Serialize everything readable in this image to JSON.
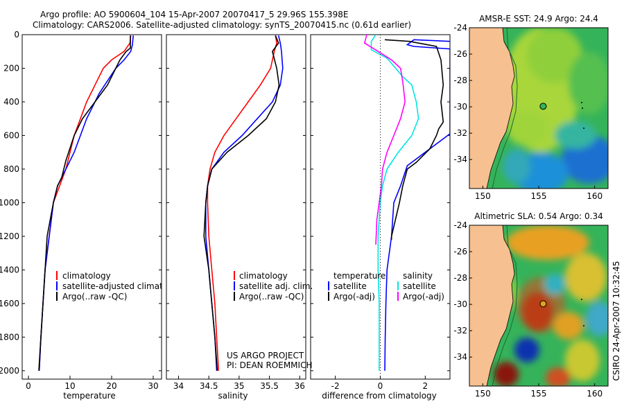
{
  "header": {
    "line1": "Argo profile: AO 5900604_104 15-Apr-2007 20070417_5 29.96S 155.398E",
    "line2": "Climatology: CARS2006. Satellite-adjusted climatology: synTS_20070415.nc (0.61d earlier)"
  },
  "colors": {
    "climatology": "#ff0000",
    "satellite": "#0000ff",
    "argo": "#000000",
    "salinity_satellite": "#00e5e5",
    "salinity_argo": "#ff00ff",
    "land": "#f6c090"
  },
  "panels": {
    "temperature": {
      "xlabel": "temperature",
      "legend": [
        "climatology",
        "satellite-adjusted climatology",
        "Argo(..raw -QC)"
      ]
    },
    "salinity": {
      "xlabel": "salinity",
      "legend": [
        "climatology",
        "satellite adj. clim.",
        "Argo(..raw -QC)"
      ],
      "project_line1": "US ARGO PROJECT",
      "project_line2": "PI: DEAN ROEMMICH"
    },
    "difference": {
      "xlabel": "difference from climatology",
      "legend_temp_title": "temperature",
      "legend_sal_title": "salinity",
      "legend_temp": [
        "satellite",
        "Argo(-adj)"
      ],
      "legend_sal": [
        "satellite",
        "Argo(-adj)"
      ]
    },
    "sst_map": {
      "title": "AMSR-E SST: 24.9 Argo: 24.4"
    },
    "sla_map": {
      "title": "Altimetric SLA: 0.54 Argo: 0.34"
    },
    "credit": "CSIRO 24-Apr-2007 10:32:45"
  },
  "chart_data": [
    {
      "type": "line",
      "name": "temperature",
      "xlabel": "temperature",
      "xlim": [
        -1.5,
        32
      ],
      "ylim": [
        2050,
        0
      ],
      "xticks": [
        0,
        10,
        20,
        30
      ],
      "yticks": [
        0,
        200,
        400,
        600,
        800,
        1000,
        1200,
        1400,
        1600,
        1800,
        2000
      ],
      "series": [
        {
          "name": "climatology",
          "color": "#ff0000",
          "points": [
            [
              24.6,
              5
            ],
            [
              24.4,
              50
            ],
            [
              23,
              100
            ],
            [
              20,
              150
            ],
            [
              18,
              200
            ],
            [
              16,
              300
            ],
            [
              14,
              400
            ],
            [
              11,
              600
            ],
            [
              9,
              800
            ],
            [
              7.5,
              900
            ],
            [
              6,
              1000
            ],
            [
              5,
              1200
            ],
            [
              4,
              1400
            ],
            [
              3.5,
              1600
            ],
            [
              3.0,
              1800
            ],
            [
              2.6,
              2000
            ]
          ]
        },
        {
          "name": "satellite-adjusted climatology",
          "color": "#0000ff",
          "points": [
            [
              25.2,
              5
            ],
            [
              25,
              60
            ],
            [
              24.6,
              100
            ],
            [
              23,
              150
            ],
            [
              21,
              200
            ],
            [
              17,
              350
            ],
            [
              14,
              500
            ],
            [
              11,
              700
            ],
            [
              9,
              800
            ],
            [
              7,
              900
            ],
            [
              6,
              1000
            ],
            [
              5,
              1200
            ],
            [
              4,
              1400
            ],
            [
              3.5,
              1600
            ],
            [
              3.0,
              1800
            ],
            [
              2.6,
              2000
            ]
          ]
        },
        {
          "name": "Argo(..raw -QC)",
          "color": "#000000",
          "points": [
            [
              24.5,
              5
            ],
            [
              24.5,
              80
            ],
            [
              23.5,
              100
            ],
            [
              22,
              150
            ],
            [
              21,
              200
            ],
            [
              19,
              300
            ],
            [
              16,
              400
            ],
            [
              13,
              500
            ],
            [
              11,
              600
            ],
            [
              9,
              750
            ],
            [
              8,
              850
            ],
            [
              7,
              900
            ],
            [
              6,
              1000
            ],
            [
              4.5,
              1200
            ],
            [
              4,
              1400
            ],
            [
              3.5,
              1600
            ],
            [
              3.0,
              1800
            ],
            [
              2.5,
              2000
            ]
          ]
        }
      ]
    },
    {
      "type": "line",
      "name": "salinity",
      "xlabel": "salinity",
      "xlim": [
        33.8,
        36.1
      ],
      "ylim": [
        2050,
        0
      ],
      "xticks": [
        34,
        34.5,
        35,
        35.5,
        36
      ],
      "series": [
        {
          "name": "climatology",
          "color": "#ff0000",
          "points": [
            [
              35.6,
              5
            ],
            [
              35.62,
              50
            ],
            [
              35.58,
              100
            ],
            [
              35.52,
              200
            ],
            [
              35.35,
              300
            ],
            [
              35.15,
              400
            ],
            [
              34.95,
              500
            ],
            [
              34.75,
              600
            ],
            [
              34.6,
              700
            ],
            [
              34.52,
              800
            ],
            [
              34.48,
              900
            ],
            [
              34.48,
              1000
            ],
            [
              34.5,
              1200
            ],
            [
              34.55,
              1400
            ],
            [
              34.6,
              1600
            ],
            [
              34.63,
              1800
            ],
            [
              34.66,
              2000
            ]
          ]
        },
        {
          "name": "satellite adj. clim.",
          "color": "#0000ff",
          "points": [
            [
              35.65,
              5
            ],
            [
              35.68,
              50
            ],
            [
              35.7,
              100
            ],
            [
              35.72,
              200
            ],
            [
              35.68,
              300
            ],
            [
              35.55,
              400
            ],
            [
              35.3,
              500
            ],
            [
              35.05,
              600
            ],
            [
              34.75,
              700
            ],
            [
              34.55,
              800
            ],
            [
              34.48,
              900
            ],
            [
              34.45,
              1000
            ],
            [
              34.45,
              1200
            ],
            [
              34.5,
              1400
            ],
            [
              34.55,
              1600
            ],
            [
              34.6,
              1800
            ],
            [
              34.63,
              2000
            ]
          ]
        },
        {
          "name": "Argo(..raw -QC)",
          "color": "#000000",
          "points": [
            [
              35.6,
              5
            ],
            [
              35.65,
              50
            ],
            [
              35.55,
              100
            ],
            [
              35.62,
              200
            ],
            [
              35.66,
              300
            ],
            [
              35.6,
              400
            ],
            [
              35.45,
              500
            ],
            [
              35.15,
              600
            ],
            [
              34.8,
              700
            ],
            [
              34.55,
              800
            ],
            [
              34.48,
              900
            ],
            [
              34.45,
              1000
            ],
            [
              34.42,
              1200
            ],
            [
              34.5,
              1400
            ],
            [
              34.55,
              1600
            ],
            [
              34.6,
              1800
            ],
            [
              34.64,
              2000
            ]
          ]
        }
      ]
    },
    {
      "type": "line",
      "name": "difference",
      "xlabel": "difference from climatology",
      "xlim": [
        -3.1,
        3.1
      ],
      "ylim": [
        2050,
        0
      ],
      "xticks": [
        -2,
        0,
        2
      ],
      "series": [
        {
          "name": "temperature satellite",
          "color": "#0000ff",
          "points": [
            [
              3.1,
              40
            ],
            [
              1.5,
              30
            ],
            [
              1.2,
              60
            ],
            [
              1.5,
              70
            ],
            [
              3.1,
              85
            ],
            [
              3.1,
              590
            ],
            [
              2,
              700
            ],
            [
              1.2,
              780
            ],
            [
              0.9,
              900
            ],
            [
              0.6,
              1000
            ],
            [
              0.5,
              1200
            ],
            [
              0.3,
              1400
            ],
            [
              0.25,
              1600
            ],
            [
              0.22,
              1800
            ],
            [
              0.2,
              2000
            ]
          ]
        },
        {
          "name": "temperature Argo(-adj)",
          "color": "#000000",
          "points": [
            [
              0.2,
              30
            ],
            [
              1.3,
              40
            ],
            [
              2.5,
              70
            ],
            [
              2.7,
              150
            ],
            [
              2.8,
              300
            ],
            [
              2.7,
              400
            ],
            [
              2.8,
              520
            ],
            [
              2.6,
              560
            ],
            [
              2.5,
              600
            ],
            [
              2.2,
              680
            ],
            [
              1.6,
              760
            ],
            [
              1.2,
              800
            ],
            [
              1.0,
              900
            ],
            [
              0.85,
              1000
            ],
            [
              0.5,
              1200
            ],
            [
              0.5,
              1220
            ]
          ]
        },
        {
          "name": "salinity satellite",
          "color": "#00e5e5",
          "points": [
            [
              -0.2,
              0
            ],
            [
              -0.4,
              40
            ],
            [
              -0.4,
              90
            ],
            [
              0.3,
              140
            ],
            [
              1.0,
              250
            ],
            [
              1.4,
              300
            ],
            [
              1.6,
              400
            ],
            [
              1.7,
              500
            ],
            [
              1.4,
              600
            ],
            [
              0.8,
              700
            ],
            [
              0.3,
              800
            ],
            [
              0.1,
              900
            ],
            [
              0.0,
              1000
            ],
            [
              -0.1,
              1200
            ],
            [
              -0.1,
              1400
            ],
            [
              -0.05,
              1600
            ],
            [
              -0.05,
              1800
            ],
            [
              -0.05,
              2000
            ]
          ]
        },
        {
          "name": "salinity Argo(-adj)",
          "color": "#ff00ff",
          "points": [
            [
              -0.6,
              0
            ],
            [
              -0.7,
              50
            ],
            [
              -0.1,
              100
            ],
            [
              0.5,
              150
            ],
            [
              0.9,
              200
            ],
            [
              1.0,
              280
            ],
            [
              1.1,
              400
            ],
            [
              0.9,
              500
            ],
            [
              0.6,
              600
            ],
            [
              0.3,
              700
            ],
            [
              0.1,
              800
            ],
            [
              0.05,
              900
            ],
            [
              -0.05,
              1000
            ],
            [
              -0.15,
              1100
            ],
            [
              -0.2,
              1250
            ]
          ]
        }
      ]
    },
    {
      "type": "heatmap",
      "name": "AMSR-E SST map",
      "title": "AMSR-E SST: 24.9 Argo: 24.4",
      "xlim": [
        148.8,
        161.2
      ],
      "ylim": [
        -36.2,
        -24
      ],
      "xticks": [
        150,
        155,
        160
      ],
      "yticks": [
        -24,
        -26,
        -28,
        -30,
        -32,
        -34
      ],
      "float_position": [
        155.398,
        -29.96
      ]
    },
    {
      "type": "heatmap",
      "name": "Altimetric SLA map",
      "title": "Altimetric SLA: 0.54 Argo: 0.34",
      "xlim": [
        148.8,
        161.2
      ],
      "ylim": [
        -36.2,
        -24
      ],
      "xticks": [
        150,
        155,
        160
      ],
      "yticks": [
        -24,
        -26,
        -28,
        -30,
        -32,
        -34
      ],
      "float_position": [
        155.398,
        -29.96
      ]
    }
  ]
}
